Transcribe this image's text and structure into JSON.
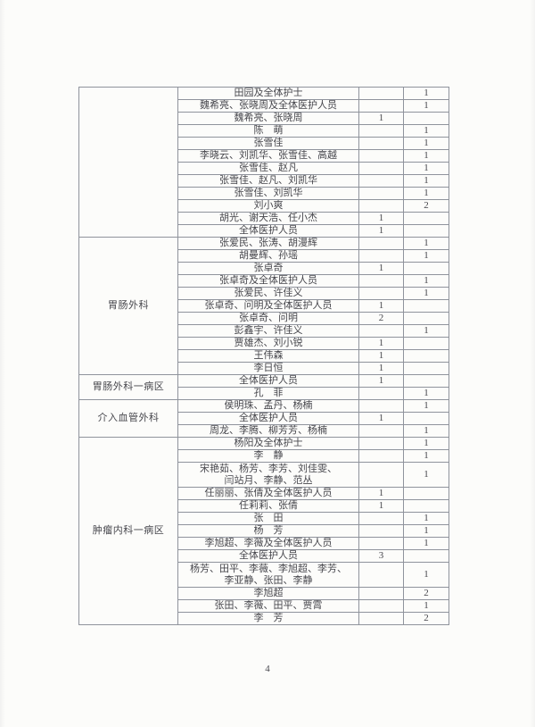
{
  "page": {
    "number": "4"
  },
  "table": {
    "sections": [
      {
        "department": "",
        "rows": [
          {
            "names": "田园及全体护士",
            "col1": "",
            "col2": "1"
          },
          {
            "names": "魏希亮、张晓周及全体医护人员",
            "col1": "",
            "col2": "1"
          },
          {
            "names": "魏希亮、张晓周",
            "col1": "1",
            "col2": ""
          },
          {
            "names": "陈　萌",
            "col1": "",
            "col2": "1"
          },
          {
            "names": "张雪佳",
            "col1": "",
            "col2": "1"
          },
          {
            "names": "李晓云、刘凯华、张雪佳、高越",
            "col1": "",
            "col2": "1"
          },
          {
            "names": "张雪佳、赵凡",
            "col1": "",
            "col2": "1"
          },
          {
            "names": "张雪佳、赵凡、刘凯华",
            "col1": "",
            "col2": "1"
          },
          {
            "names": "张雪佳、刘凯华",
            "col1": "",
            "col2": "1"
          },
          {
            "names": "刘小爽",
            "col1": "",
            "col2": "2"
          },
          {
            "names": "胡光、谢天浩、任小杰",
            "col1": "1",
            "col2": ""
          },
          {
            "names": "全体医护人员",
            "col1": "1",
            "col2": ""
          }
        ]
      },
      {
        "department": "胃肠外科",
        "rows": [
          {
            "names": "张爱民、张涛、胡漫辉",
            "col1": "",
            "col2": "1"
          },
          {
            "names": "胡曼辉、孙瑶",
            "col1": "",
            "col2": "1"
          },
          {
            "names": "张卓奇",
            "col1": "1",
            "col2": ""
          },
          {
            "names": "张卓奇及全体医护人员",
            "col1": "",
            "col2": "1"
          },
          {
            "names": "张爱民、许佳义",
            "col1": "",
            "col2": "1"
          },
          {
            "names": "张卓奇、问明及全体医护人员",
            "col1": "1",
            "col2": ""
          },
          {
            "names": "张卓奇、问明",
            "col1": "2",
            "col2": ""
          },
          {
            "names": "彭鑫宇、许佳义",
            "col1": "",
            "col2": "1"
          },
          {
            "names": "贾雄杰、刘小锐",
            "col1": "1",
            "col2": ""
          },
          {
            "names": "王伟森",
            "col1": "1",
            "col2": ""
          },
          {
            "names": "李日恒",
            "col1": "1",
            "col2": ""
          }
        ]
      },
      {
        "department": "胃肠外科一病区",
        "rows": [
          {
            "names": "全体医护人员",
            "col1": "1",
            "col2": ""
          },
          {
            "names": "孔　菲",
            "col1": "",
            "col2": "1"
          }
        ]
      },
      {
        "department": "介入血管外科",
        "rows": [
          {
            "names": "侯明珠、孟丹、杨楠",
            "col1": "",
            "col2": "1"
          },
          {
            "names": "全体医护人员",
            "col1": "1",
            "col2": ""
          },
          {
            "names": "周龙、李腾、柳芳芳、杨楠",
            "col1": "",
            "col2": "1"
          }
        ]
      },
      {
        "department": "肿瘤内科一病区",
        "rows": [
          {
            "names": "杨阳及全体护士",
            "col1": "",
            "col2": "1"
          },
          {
            "names": "李　静",
            "col1": "",
            "col2": "1"
          },
          {
            "names": "宋艳茹、杨芳、李芳、刘佳雯、\n闫站月、李静、范丛",
            "col1": "",
            "col2": "1",
            "tall": true
          },
          {
            "names": "任丽丽、张倩及全体医护人员",
            "col1": "1",
            "col2": ""
          },
          {
            "names": "任莉莉、张倩",
            "col1": "1",
            "col2": ""
          },
          {
            "names": "张　田",
            "col1": "",
            "col2": "1"
          },
          {
            "names": "杨　芳",
            "col1": "",
            "col2": "1"
          },
          {
            "names": "李旭超、李薇及全体医护人员",
            "col1": "",
            "col2": "1"
          },
          {
            "names": "全体医护人员",
            "col1": "3",
            "col2": ""
          },
          {
            "names": "杨芳、田平、李薇、李旭超、李芳、\n李亚静、张田、李静",
            "col1": "",
            "col2": "1",
            "tall": true
          },
          {
            "names": "李旭超",
            "col1": "",
            "col2": "2"
          },
          {
            "names": "张田、李薇、田平、贾霄",
            "col1": "",
            "col2": "1"
          },
          {
            "names": "李　芳",
            "col1": "",
            "col2": "2"
          }
        ]
      }
    ]
  }
}
